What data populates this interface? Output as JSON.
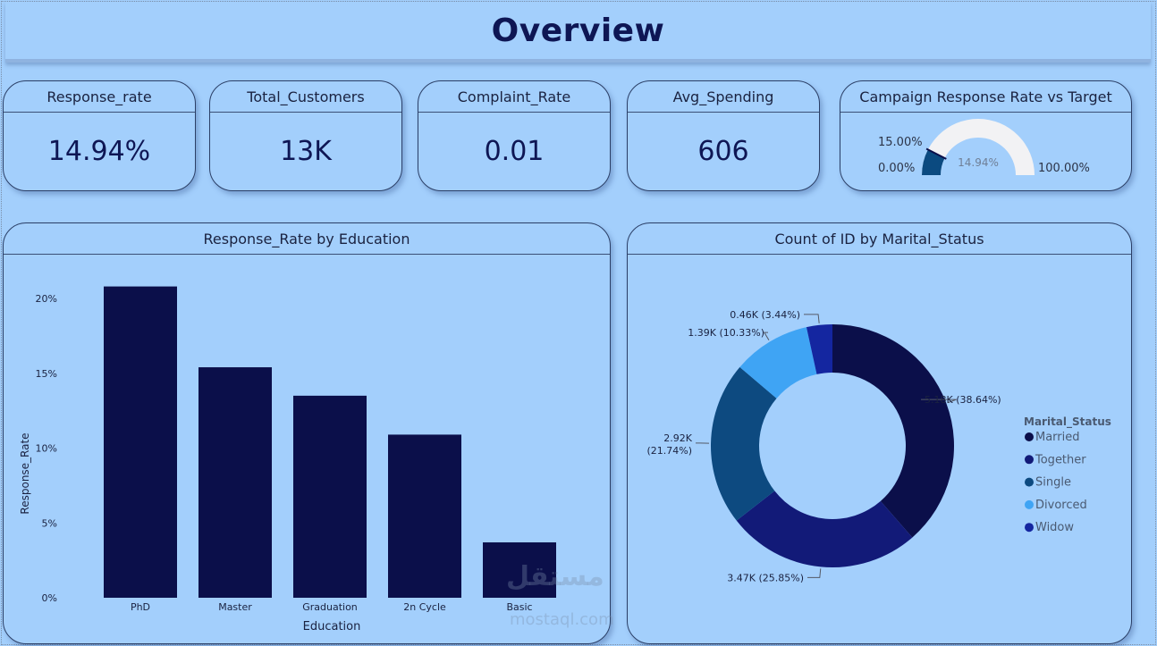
{
  "header": {
    "title": "Overview"
  },
  "kpis": [
    {
      "title": "Response_rate",
      "value": "14.94%"
    },
    {
      "title": "Total_Customers",
      "value": "13K"
    },
    {
      "title": "Complaint_Rate",
      "value": "0.01"
    },
    {
      "title": "Avg_Spending",
      "value": "606"
    }
  ],
  "gauge": {
    "title": "Campaign Response Rate vs Target",
    "min_label": "0.00%",
    "max_label": "100.00%",
    "target_label": "15.00%",
    "value_label": "14.94%",
    "value": 14.94,
    "target": 15.0,
    "min": 0,
    "max": 100,
    "fill_color": "#0b4a80",
    "track_color": "#f2f2f4"
  },
  "bar_chart": {
    "title": "Response_Rate by Education"
  },
  "donut_chart": {
    "title": "Count of ID by Marital_Status"
  },
  "watermark": {
    "text": "مستقل",
    "sub": "mostaql.com"
  },
  "chart_data": [
    {
      "type": "bar",
      "title": "Response_Rate by Education",
      "xlabel": "Education",
      "ylabel": "Response_Rate",
      "categories": [
        "PhD",
        "Master",
        "Graduation",
        "2n Cycle",
        "Basic"
      ],
      "values": [
        20.8,
        15.4,
        13.5,
        10.9,
        3.7
      ],
      "ylim": [
        0,
        22
      ],
      "yticks": [
        0,
        5,
        10,
        15,
        20
      ],
      "ytick_labels": [
        "0%",
        "5%",
        "10%",
        "15%",
        "20%"
      ],
      "bar_color": "#0b0f4a",
      "grid": false
    },
    {
      "type": "pie",
      "title": "Count of ID by Marital_Status",
      "legend_title": "Marital_Status",
      "legend_position": "right",
      "labels": [
        "Married",
        "Together",
        "Single",
        "Divorced",
        "Widow"
      ],
      "values": [
        5180,
        3470,
        2920,
        1390,
        460
      ],
      "percents": [
        38.64,
        25.85,
        21.74,
        10.33,
        3.44
      ],
      "data_labels": [
        "5.18K (38.64%)",
        "3.47K (25.85%)",
        "2.92K (21.74%)",
        "1.39K (10.33%)",
        "0.46K (3.44%)"
      ],
      "colors": [
        "#0b0f4a",
        "#121a78",
        "#0d4a80",
        "#3fa4f4",
        "#1426a0"
      ]
    }
  ]
}
